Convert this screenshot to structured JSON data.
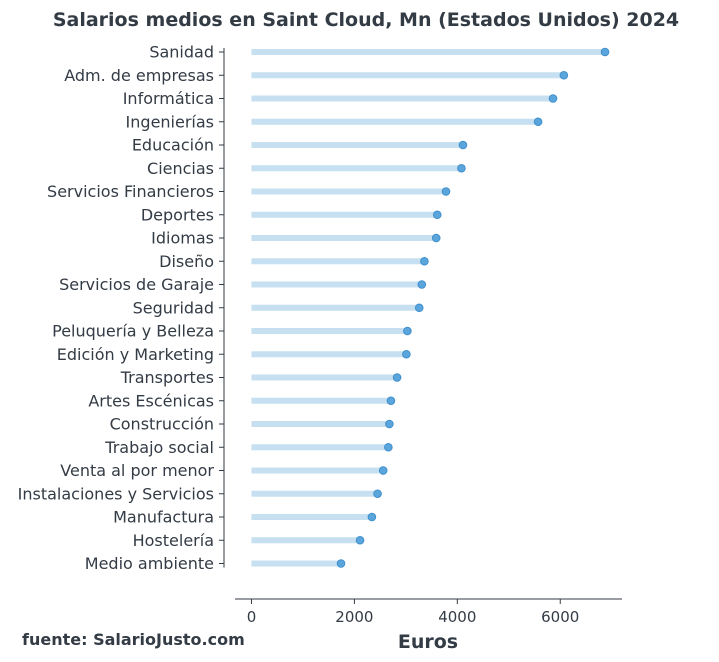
{
  "chart_data": {
    "type": "dot-bar",
    "title": "Salarios medios en Saint Cloud, Mn (Estados Unidos) 2024",
    "xlabel": "Euros",
    "ylabel": "",
    "xlim": [
      -320,
      7200
    ],
    "xticks": [
      0,
      2000,
      4000,
      6000
    ],
    "categories": [
      "Sanidad",
      "Adm. de empresas",
      "Informática",
      "Ingenierías",
      "Educación",
      "Ciencias",
      "Servicios Financieros",
      "Deportes",
      "Idiomas",
      "Diseño",
      "Servicios de Garaje",
      "Seguridad",
      "Peluquería y Belleza",
      "Edición y Marketing",
      "Transportes",
      "Artes Escénicas",
      "Construcción",
      "Trabajo social",
      "Venta al por menor",
      "Instalaciones y Servicios",
      "Manufactura",
      "Hostelería",
      "Medio ambiente"
    ],
    "values": [
      6870,
      6070,
      5860,
      5570,
      4110,
      4080,
      3780,
      3610,
      3590,
      3360,
      3310,
      3260,
      3030,
      3010,
      2830,
      2710,
      2680,
      2660,
      2560,
      2450,
      2340,
      2110,
      1740
    ],
    "grid": false,
    "legend": "none",
    "colors": {
      "bar": "#c6e0f1",
      "dot": "#3f8fcc",
      "dot_fill": "#5aa5db",
      "text": "#333b45",
      "axis": "#333b45"
    }
  },
  "source": "fuente: SalarioJusto.com"
}
